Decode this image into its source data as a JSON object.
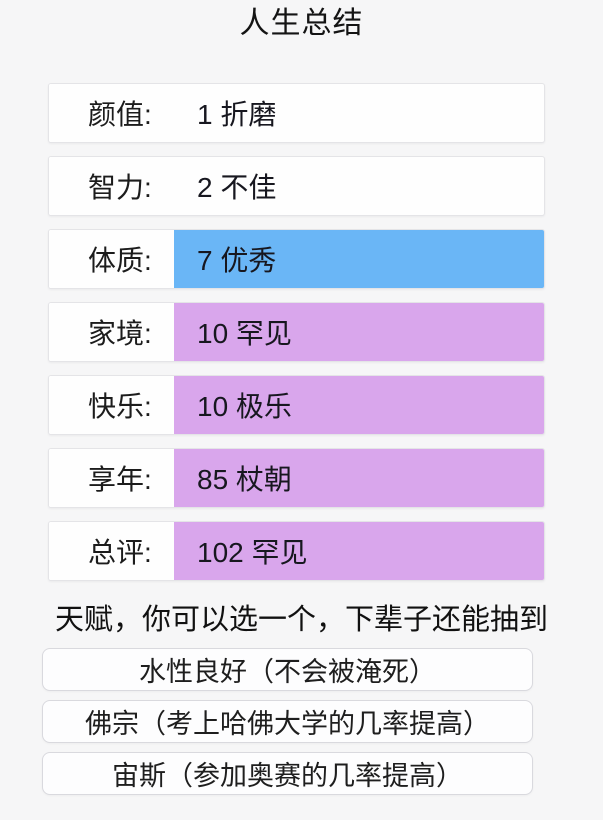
{
  "page": {
    "title": "人生总结"
  },
  "stats": {
    "rows": [
      {
        "label": "颜值:",
        "value": "1 折磨",
        "highlight": "none"
      },
      {
        "label": "智力:",
        "value": "2 不佳",
        "highlight": "none"
      },
      {
        "label": "体质:",
        "value": "7 优秀",
        "highlight": "blue"
      },
      {
        "label": "家境:",
        "value": "10 罕见",
        "highlight": "purple"
      },
      {
        "label": "快乐:",
        "value": "10 极乐",
        "highlight": "purple"
      },
      {
        "label": "享年:",
        "value": "85 杖朝",
        "highlight": "purple"
      },
      {
        "label": "总评:",
        "value": "102 罕见",
        "highlight": "purple"
      }
    ],
    "colors": {
      "blue": "#6ab6f6",
      "purple": "#d9a6ec"
    }
  },
  "talents": {
    "hint": "天赋，你可以选一个，下辈子还能抽到",
    "options": [
      "水性良好（不会被淹死）",
      "佛宗（考上哈佛大学的几率提高）",
      "宙斯（参加奥赛的几率提高）"
    ]
  }
}
